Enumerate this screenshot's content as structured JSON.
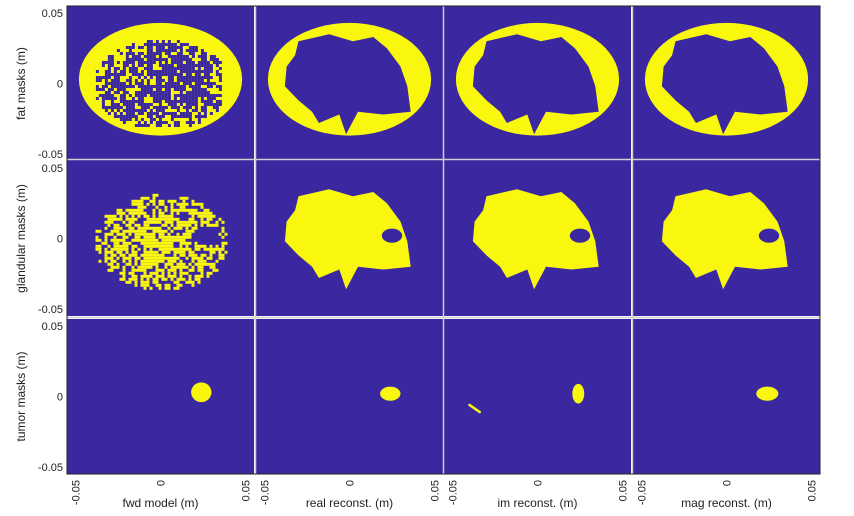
{
  "colors": {
    "background": "#3b28a0",
    "mask": "#f9f70e",
    "grid_separator": "#cfcfcf",
    "frame": "#222222"
  },
  "chart_data": {
    "type": "heatmap",
    "layout": "3 rows x 4 columns of binary mask images",
    "row_labels": [
      "fat masks (m)",
      "glandular masks (m)",
      "tumor masks (m)"
    ],
    "column_labels": [
      "fwd model (m)",
      "real reconst. (m)",
      "im reconst. (m)",
      "mag reconst. (m)"
    ],
    "y_ticks": [
      "0.05",
      "0",
      "-0.05"
    ],
    "x_ticks": [
      "-0.05",
      "0",
      "0.05"
    ],
    "xlim": [
      -0.055,
      0.055
    ],
    "ylim": [
      -0.055,
      0.055
    ],
    "colormap": [
      "#3b28a0",
      "#f9f70e"
    ],
    "masks": {
      "fat": {
        "outer_ellipse": {
          "cx": 0.0,
          "cy": 0.003,
          "rx": 0.048,
          "ry": 0.04
        },
        "reconstructed_interior": [
          [
            -0.03,
            0.03
          ],
          [
            -0.012,
            0.035
          ],
          [
            0.002,
            0.03
          ],
          [
            0.014,
            0.033
          ],
          [
            0.022,
            0.025
          ],
          [
            0.03,
            0.012
          ],
          [
            0.034,
            -0.002
          ],
          [
            0.036,
            -0.02
          ],
          [
            0.02,
            -0.022
          ],
          [
            0.005,
            -0.02
          ],
          [
            -0.002,
            -0.036
          ],
          [
            -0.006,
            -0.022
          ],
          [
            -0.018,
            -0.028
          ],
          [
            -0.022,
            -0.02
          ],
          [
            -0.03,
            -0.012
          ],
          [
            -0.038,
            -0.002
          ],
          [
            -0.037,
            0.012
          ],
          [
            -0.032,
            0.02
          ]
        ]
      },
      "glandular": {
        "reconstructed_blob": [
          [
            -0.03,
            0.03
          ],
          [
            -0.012,
            0.035
          ],
          [
            0.002,
            0.03
          ],
          [
            0.014,
            0.033
          ],
          [
            0.022,
            0.025
          ],
          [
            0.03,
            0.012
          ],
          [
            0.034,
            -0.002
          ],
          [
            0.036,
            -0.02
          ],
          [
            0.02,
            -0.022
          ],
          [
            0.005,
            -0.02
          ],
          [
            -0.002,
            -0.036
          ],
          [
            -0.006,
            -0.022
          ],
          [
            -0.018,
            -0.028
          ],
          [
            -0.022,
            -0.02
          ],
          [
            -0.03,
            -0.012
          ],
          [
            -0.038,
            -0.002
          ],
          [
            -0.037,
            0.012
          ],
          [
            -0.032,
            0.02
          ]
        ],
        "hole": {
          "cx": 0.025,
          "cy": 0.002,
          "rx": 0.006,
          "ry": 0.005
        }
      },
      "tumor": [
        {
          "cx": 0.024,
          "cy": 0.003,
          "rx": 0.006,
          "ry": 0.007
        },
        {
          "cx": 0.024,
          "cy": 0.002,
          "rx": 0.006,
          "ry": 0.005
        },
        {
          "cx": 0.024,
          "cy": 0.002,
          "rx": 0.0035,
          "ry": 0.007,
          "extra": {
            "x1": -0.04,
            "y1": -0.006,
            "x2": -0.034,
            "y2": -0.011
          }
        },
        {
          "cx": 0.024,
          "cy": 0.002,
          "rx": 0.0065,
          "ry": 0.005
        }
      ]
    }
  }
}
